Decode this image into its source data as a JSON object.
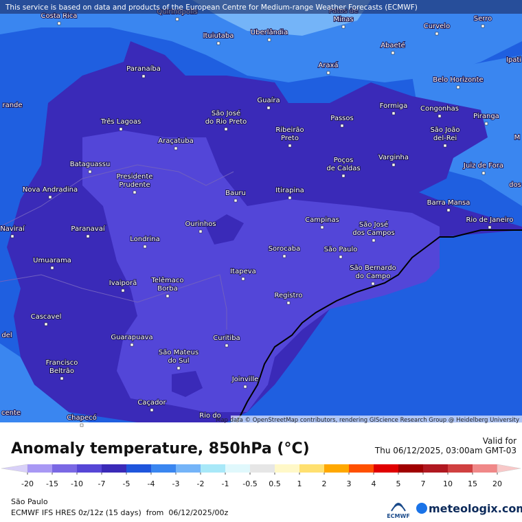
{
  "banner": "This service is based on data and products of the European Centre for Medium-range Weather Forecasts (ECMWF)",
  "cities": [
    [
      "Costa Rica"
    ],
    [
      "Quirinópolis"
    ],
    [
      "Patos de",
      "Minas"
    ],
    [
      "Serro"
    ],
    [
      "Curvelo"
    ],
    [
      "Ituiutaba"
    ],
    [
      "Uberlândia"
    ],
    [
      "Abaeté"
    ],
    [
      "Araxá"
    ],
    [
      "Ipati"
    ],
    [
      "Paranaíba"
    ],
    [
      "Belo Horizonte"
    ],
    [
      "rande"
    ],
    [
      "Guaíra"
    ],
    [
      "Formiga"
    ],
    [
      "Congonhas"
    ],
    [
      "São José",
      "do Rio Preto"
    ],
    [
      "Passos"
    ],
    [
      "Piranga"
    ],
    [
      "Três Lagoas"
    ],
    [
      "São João",
      "del-Rei"
    ],
    [
      "Ribeirão",
      "Preto"
    ],
    [
      "M"
    ],
    [
      "Araçatuba"
    ],
    [
      "Varginha"
    ],
    [
      "Poços",
      "de Caldas"
    ],
    [
      "Juiz de Fora"
    ],
    [
      "Bataguassu"
    ],
    [
      "Presidente",
      "Prudente"
    ],
    [
      "dos"
    ],
    [
      "Nova Andradina"
    ],
    [
      "Bauru"
    ],
    [
      "Itirapina"
    ],
    [
      "Barra Mansa"
    ],
    [
      "Campinas"
    ],
    [
      "São José",
      "dos Campos"
    ],
    [
      "Rio de Janeiro"
    ],
    [
      "Ourinhos"
    ],
    [
      "Paranavaí"
    ],
    [
      "Naviraí"
    ],
    [
      "Londrina"
    ],
    [
      "Sorocaba"
    ],
    [
      "São Paulo"
    ],
    [
      "São Bernardo",
      "do Campo"
    ],
    [
      "Umuarama"
    ],
    [
      "Itapeva"
    ],
    [
      "Ivaiporã"
    ],
    [
      "Telêmaco",
      "Borba"
    ],
    [
      "Registro"
    ],
    [
      "Cascavel"
    ],
    [
      "del"
    ],
    [
      "Guarapuava"
    ],
    [
      "Curitiba"
    ],
    [
      "São Mateus",
      "do Sul"
    ],
    [
      "Francisco",
      "Beltrão"
    ],
    [
      "Joinville"
    ],
    [
      "Caçador"
    ],
    [
      "cente"
    ],
    [
      "Chapecó"
    ],
    [
      "Rio do"
    ]
  ],
  "attribution": "Map data © OpenStreetMap contributors, rendering GIScience Research Group @ Heidelberg University",
  "legend": {
    "title": "Anomaly temperature, 850hPa (°C)",
    "valid_label": "Valid for",
    "valid_time": "Thu 06/12/2025, 03:00am GMT-03",
    "ticks": [
      -20,
      -15,
      -10,
      -7,
      -5,
      -4,
      -3,
      -2,
      -1,
      -0.5,
      0.5,
      1,
      2,
      3,
      4,
      5,
      7,
      10,
      15,
      20
    ],
    "colors": [
      "#d8d0f8",
      "#a898f4",
      "#7a68e4",
      "#5646d6",
      "#3a2ab8",
      "#1f55dc",
      "#3a86f0",
      "#74b4f8",
      "#a8e8f8",
      "#e0f8fc",
      "#e6e6e6",
      "#fff8c8",
      "#ffe070",
      "#ffa800",
      "#ff5000",
      "#e00000",
      "#a00000",
      "#b01820",
      "#d04040",
      "#f08888",
      "#f8c8c8"
    ]
  },
  "footer": {
    "location": "São Paulo",
    "model": "ECMWF IFS HRES 0z/12z (15 days)  from  06/12/2025/00z",
    "ecmwf": "ECMWF",
    "brand": "meteologix.com"
  }
}
